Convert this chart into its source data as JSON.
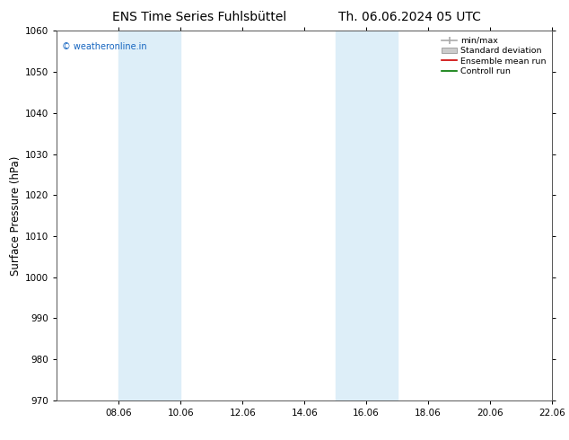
{
  "title_left": "ENS Time Series Fuhlsbüttel",
  "title_right": "Th. 06.06.2024 05 UTC",
  "ylabel": "Surface Pressure (hPa)",
  "ylim": [
    970,
    1060
  ],
  "yticks": [
    970,
    980,
    990,
    1000,
    1010,
    1020,
    1030,
    1040,
    1050,
    1060
  ],
  "xlim": [
    0,
    16
  ],
  "xtick_labels": [
    "08.06",
    "10.06",
    "12.06",
    "14.06",
    "16.06",
    "18.06",
    "20.06",
    "22.06"
  ],
  "xtick_positions": [
    2,
    4,
    6,
    8,
    10,
    12,
    14,
    16
  ],
  "shaded_regions": [
    {
      "x_start": 2,
      "x_end": 4,
      "color": "#ddeef8"
    },
    {
      "x_start": 9,
      "x_end": 11,
      "color": "#ddeef8"
    }
  ],
  "watermark_text": "© weatheronline.in",
  "watermark_color": "#1565C0",
  "legend_items": [
    {
      "label": "min/max",
      "color": "#aaaaaa",
      "type": "minmax"
    },
    {
      "label": "Standard deviation",
      "color": "#cccccc",
      "type": "patch"
    },
    {
      "label": "Ensemble mean run",
      "color": "#cc0000",
      "type": "line"
    },
    {
      "label": "Controll run",
      "color": "#007700",
      "type": "line"
    }
  ],
  "bg_color": "#ffffff",
  "title_fontsize": 10,
  "tick_fontsize": 7.5,
  "ylabel_fontsize": 8.5
}
